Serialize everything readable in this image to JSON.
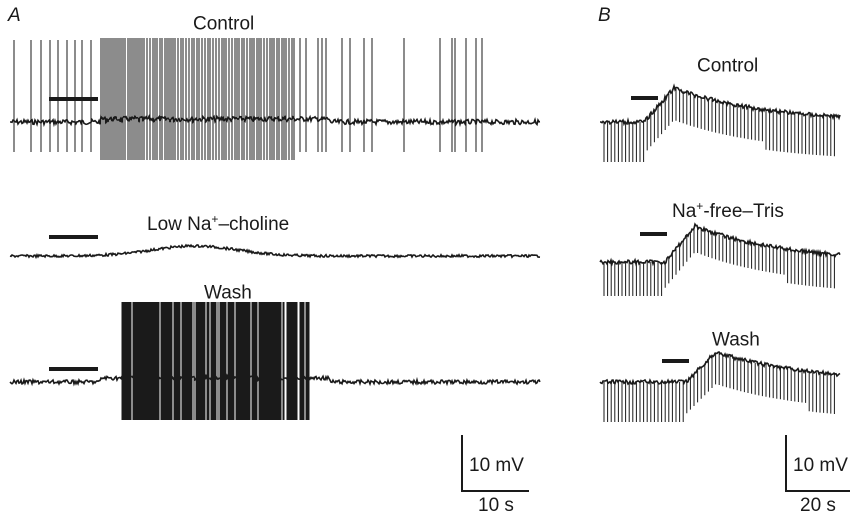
{
  "figure": {
    "panelA": {
      "letter": "A",
      "traces": [
        {
          "label_pre": "Control",
          "label_sup": "",
          "label_post": ""
        },
        {
          "label_pre": "Low Na",
          "label_sup": "+",
          "label_post": "–choline"
        },
        {
          "label_pre": "Wash",
          "label_sup": "",
          "label_post": ""
        }
      ],
      "scale": {
        "voltage": "10 mV",
        "time": "10 s"
      }
    },
    "panelB": {
      "letter": "B",
      "traces": [
        {
          "label_pre": "Control",
          "label_sup": "",
          "label_post": ""
        },
        {
          "label_pre": "Na",
          "label_sup": "+",
          "label_post": "-free–Tris"
        },
        {
          "label_pre": "Wash",
          "label_sup": "",
          "label_post": ""
        }
      ],
      "scale": {
        "voltage": "10 mV",
        "time": "20 s"
      }
    },
    "trace_color": "#1a1a1a"
  }
}
